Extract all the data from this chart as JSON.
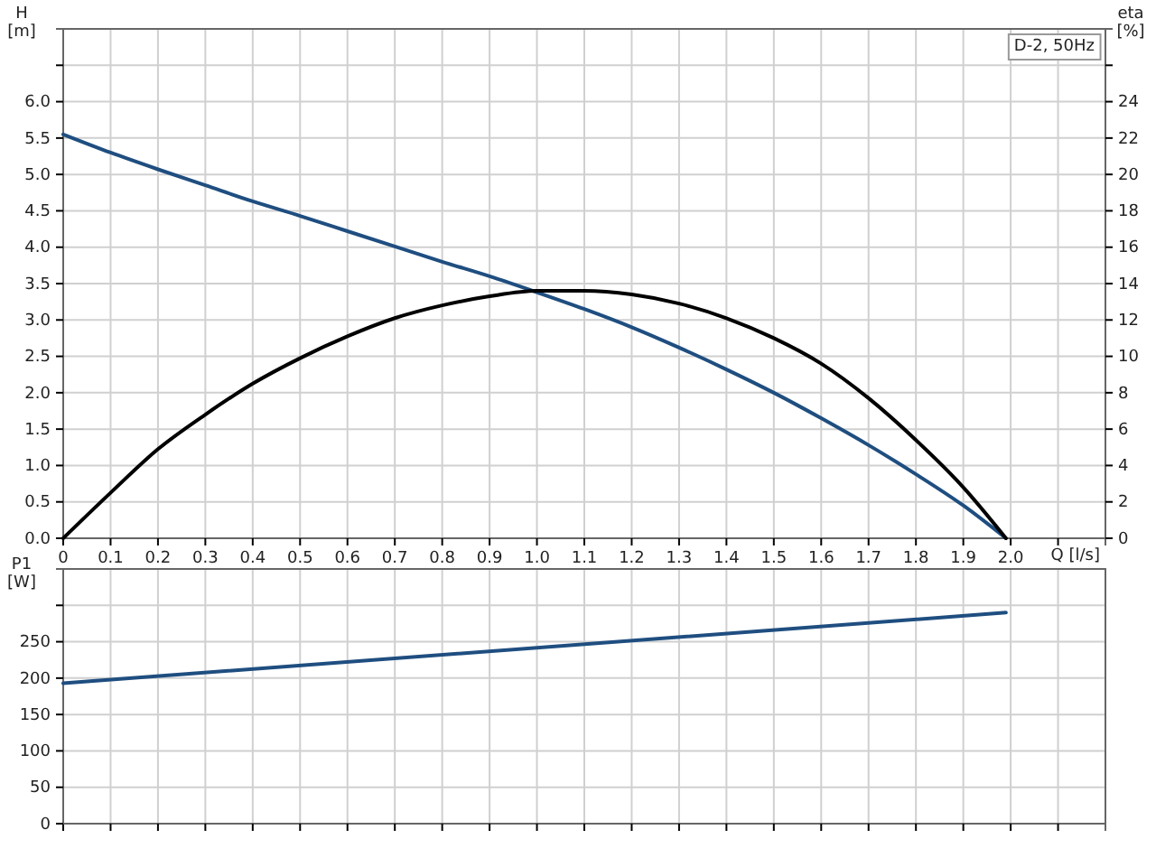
{
  "chart_data": [
    {
      "type": "line",
      "ylabel": "H [m]",
      "y2label": "eta [%]",
      "xlabel": "Q [l/s]",
      "annotations": [
        "D-2, 50Hz"
      ],
      "grid": true,
      "xlim": [
        0,
        2.2
      ],
      "xticks": [
        0,
        0.1,
        0.2,
        0.3,
        0.4,
        0.5,
        0.6,
        0.7,
        0.8,
        0.9,
        {
          "value": 1,
          "label": "1.0"
        },
        1.1,
        1.2,
        1.3,
        1.4,
        1.5,
        1.6,
        1.7,
        1.8,
        1.9,
        {
          "value": 2,
          "label": "2.0"
        },
        {
          "value": 2.1,
          "label": null
        }
      ],
      "ylim": [
        0,
        7
      ],
      "yticks": [
        {
          "value": 0,
          "label": "0.0"
        },
        0.5,
        {
          "value": 1,
          "label": "1.0"
        },
        1.5,
        {
          "value": 2,
          "label": "2.0"
        },
        2.5,
        {
          "value": 3,
          "label": "3.0"
        },
        3.5,
        {
          "value": 4,
          "label": "4.0"
        },
        4.5,
        {
          "value": 5,
          "label": "5.0"
        },
        5.5,
        {
          "value": 6,
          "label": "6.0"
        },
        {
          "value": 6.5,
          "label": null
        }
      ],
      "y2lim": [
        0,
        28
      ],
      "y2ticks": [
        0,
        2,
        4,
        6,
        8,
        10,
        12,
        14,
        16,
        18,
        20,
        22,
        24,
        {
          "value": 26,
          "label": null
        }
      ],
      "series": [
        {
          "color": "#1f4e80",
          "x": [
            0,
            0.1,
            0.2,
            0.3,
            0.4,
            0.5,
            0.6,
            0.7,
            0.8,
            0.9,
            1.0,
            1.1,
            1.2,
            1.3,
            1.4,
            1.5,
            1.6,
            1.7,
            1.8,
            1.9,
            1.99
          ],
          "values": [
            5.55,
            5.3,
            5.07,
            4.85,
            4.63,
            4.43,
            4.22,
            4.01,
            3.8,
            3.6,
            3.38,
            3.15,
            2.9,
            2.62,
            2.32,
            2.0,
            1.65,
            1.28,
            0.88,
            0.45,
            0
          ]
        },
        {
          "color": "#000000",
          "axis": "y2",
          "x": [
            0,
            0.1,
            0.2,
            0.3,
            0.4,
            0.5,
            0.6,
            0.7,
            0.8,
            0.9,
            1.0,
            1.1,
            1.2,
            1.3,
            1.4,
            1.5,
            1.6,
            1.7,
            1.8,
            1.9,
            1.99
          ],
          "values": [
            0,
            2.5,
            4.9,
            6.8,
            8.5,
            9.9,
            11.1,
            12.1,
            12.8,
            13.3,
            13.6,
            13.6,
            13.4,
            12.9,
            12.1,
            11.0,
            9.6,
            7.7,
            5.4,
            2.8,
            0
          ]
        }
      ]
    },
    {
      "type": "line",
      "ylabel": "P1 [W]",
      "grid": true,
      "tick_labels": "y",
      "xlim": [
        0,
        2.2
      ],
      "xticks": [
        0,
        0.1,
        0.2,
        0.3,
        0.4,
        0.5,
        0.6,
        0.7,
        0.8,
        0.9,
        1.0,
        1.1,
        1.2,
        1.3,
        1.4,
        1.5,
        1.6,
        1.7,
        1.8,
        1.9,
        2.0,
        2.1
      ],
      "ylim": [
        0,
        350
      ],
      "yticks": [
        0,
        50,
        100,
        150,
        200,
        250,
        {
          "value": 300,
          "label": null
        }
      ],
      "series": [
        {
          "color": "#1f4e80",
          "x": [
            0,
            1.99
          ],
          "values": [
            193,
            290
          ]
        }
      ]
    }
  ]
}
